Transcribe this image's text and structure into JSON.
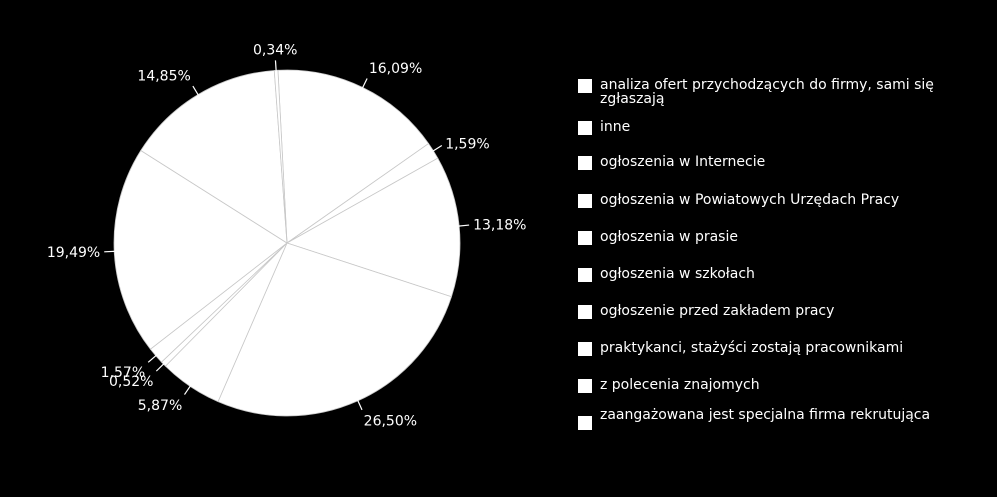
{
  "chart_data": {
    "type": "pie",
    "title": "",
    "legend_position": "right",
    "start_angle_deg": -3,
    "direction": "clockwise",
    "slices": [
      {
        "label": "analiza ofert przychodzących do firmy, sami się zgłaszają",
        "value": 16.09,
        "display": "16,09%"
      },
      {
        "label": "inne",
        "value": 1.59,
        "display": "1,59%"
      },
      {
        "label": "ogłoszenia w Internecie",
        "value": 13.18,
        "display": "13,18%"
      },
      {
        "label": "ogłoszenia w Powiatowych Urzędach Pracy",
        "value": 26.5,
        "display": "26,50%"
      },
      {
        "label": "ogłoszenia w prasie",
        "value": 5.87,
        "display": "5,87%"
      },
      {
        "label": "ogłoszenia w szkołach",
        "value": 0.52,
        "display": "0,52%"
      },
      {
        "label": "ogłoszenie przed zakładem pracy",
        "value": 1.57,
        "display": "1,57%"
      },
      {
        "label": "praktykanci, stażyści zostają pracownikami",
        "value": 19.49,
        "display": "19,49%"
      },
      {
        "label": "z polecenia znajomych",
        "value": 14.85,
        "display": "14,85%"
      },
      {
        "label": "zaangażowana jest specjalna firma rekrutująca",
        "value": 0.34,
        "display": "0,34%"
      }
    ],
    "colors": {
      "background": "#000000",
      "slice_fill": "#ffffff",
      "slice_border": "#c8c8c8",
      "text": "#ffffff"
    }
  },
  "legend": {
    "items": [
      "analiza ofert przychodzących do firmy, sami się zgłaszają",
      "inne",
      "ogłoszenia w Internecie",
      "ogłoszenia w Powiatowych Urzędach Pracy",
      "ogłoszenia w prasie",
      "ogłoszenia w szkołach",
      "ogłoszenie przed zakładem pracy",
      "praktykanci, stażyści zostają pracownikami",
      "z polecenia znajomych",
      "zaangażowana jest specjalna firma rekrutująca"
    ]
  }
}
